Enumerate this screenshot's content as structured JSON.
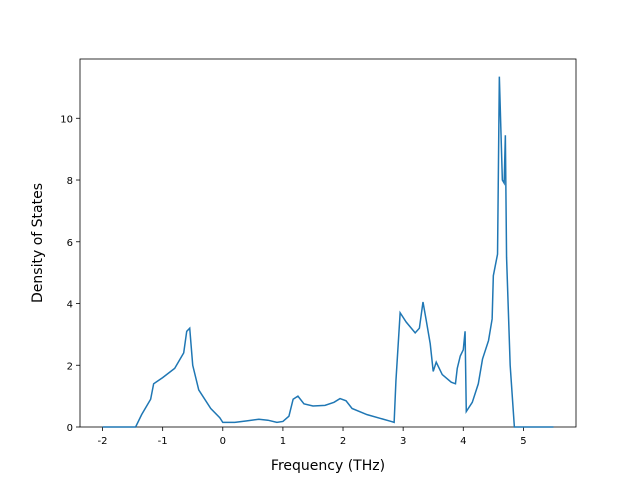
{
  "chart_data": {
    "type": "line",
    "x_label": "Frequency (THz)",
    "y_label": "Density of States",
    "x": [
      -2.0,
      -1.45,
      -1.35,
      -1.2,
      -1.15,
      -1.0,
      -0.8,
      -0.65,
      -0.6,
      -0.55,
      -0.5,
      -0.4,
      -0.2,
      -0.05,
      0.0,
      0.2,
      0.4,
      0.6,
      0.75,
      0.9,
      1.0,
      1.1,
      1.17,
      1.25,
      1.35,
      1.5,
      1.7,
      1.85,
      1.95,
      2.05,
      2.15,
      2.4,
      2.8,
      2.85,
      2.88,
      2.95,
      3.05,
      3.2,
      3.27,
      3.33,
      3.38,
      3.45,
      3.5,
      3.55,
      3.65,
      3.8,
      3.87,
      3.9,
      3.95,
      4.0,
      4.03,
      4.05,
      4.15,
      4.25,
      4.32,
      4.42,
      4.48,
      4.5,
      4.57,
      4.6,
      4.65,
      4.68,
      4.7,
      4.72,
      4.78,
      4.85,
      5.5
    ],
    "series": [
      {
        "color": "#1f77b4",
        "values": [
          0,
          0,
          0.4,
          0.9,
          1.4,
          1.6,
          1.9,
          2.4,
          3.1,
          3.2,
          2.0,
          1.2,
          0.6,
          0.3,
          0.15,
          0.15,
          0.2,
          0.25,
          0.22,
          0.15,
          0.18,
          0.35,
          0.9,
          1.0,
          0.75,
          0.68,
          0.7,
          0.8,
          0.92,
          0.85,
          0.6,
          0.4,
          0.18,
          0.15,
          1.5,
          3.7,
          3.4,
          3.05,
          3.2,
          4.05,
          3.5,
          2.7,
          1.8,
          2.1,
          1.7,
          1.45,
          1.4,
          1.9,
          2.3,
          2.5,
          3.1,
          0.5,
          0.8,
          1.4,
          2.2,
          2.8,
          3.5,
          4.9,
          5.6,
          11.35,
          8.0,
          7.9,
          9.45,
          5.5,
          2.0,
          0,
          0
        ]
      }
    ],
    "xlim": [
      -2.375,
      5.875
    ],
    "ylim": [
      0,
      11.92
    ],
    "xticks": [
      -2,
      -1,
      0,
      1,
      2,
      3,
      4,
      5
    ],
    "yticks": [
      0,
      2,
      4,
      6,
      8,
      10
    ]
  }
}
